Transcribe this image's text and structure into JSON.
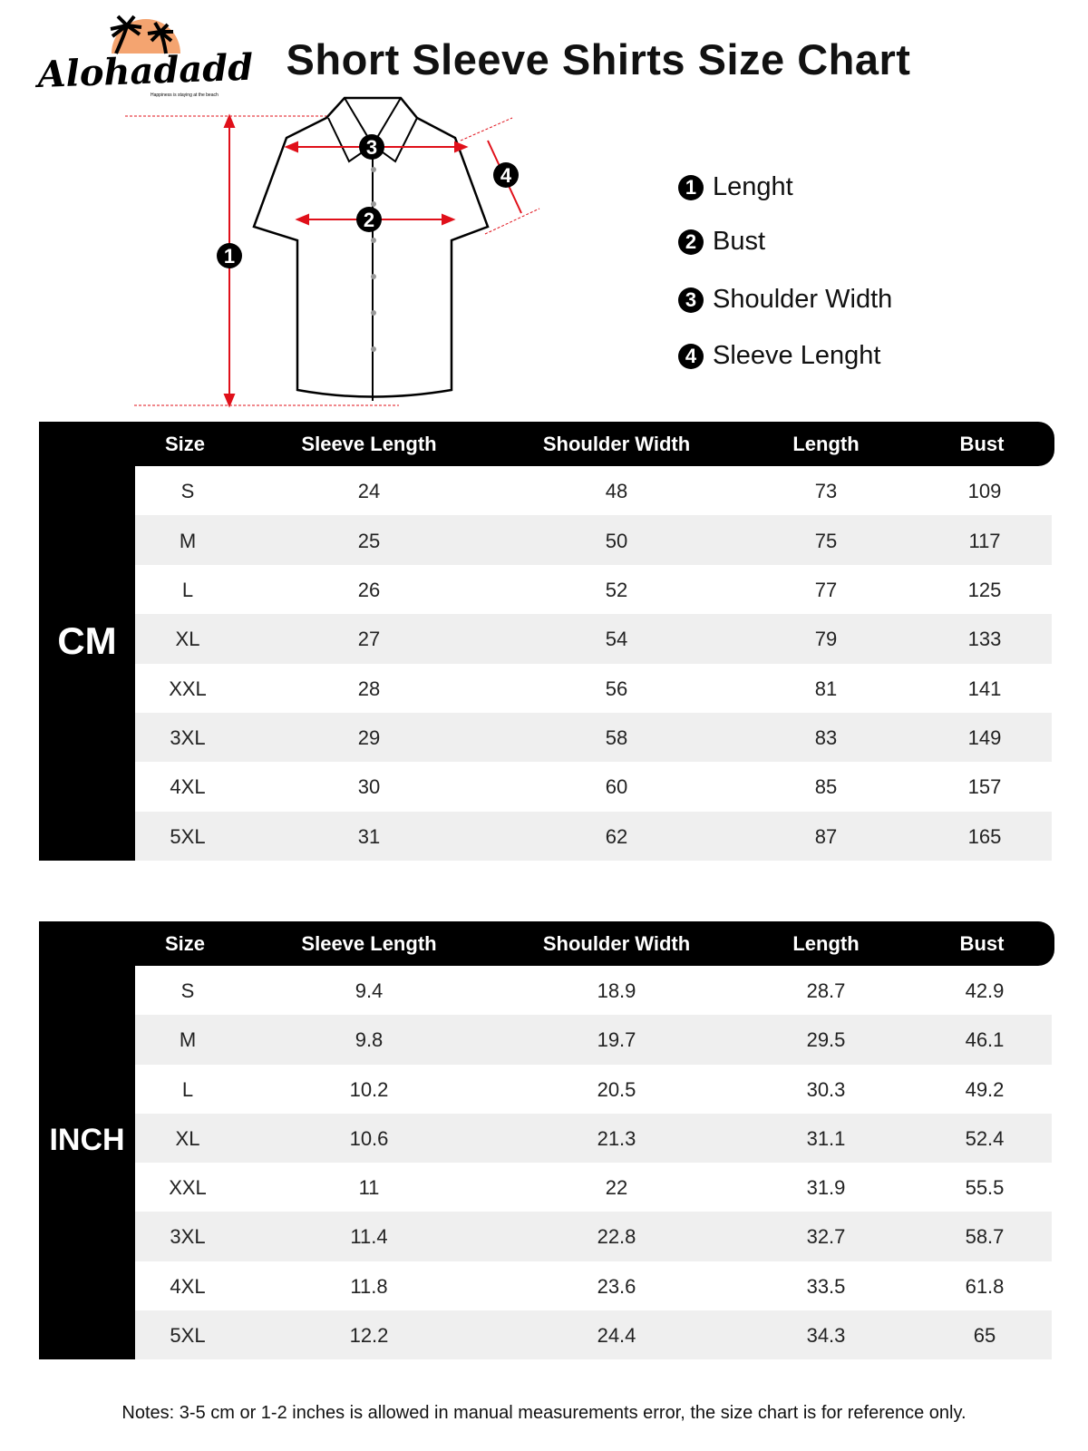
{
  "brand": {
    "name": "Alohadaddy",
    "tagline": "Happiness is staying at the beach",
    "accent": "#f4a470"
  },
  "title": "Short Sleeve Shirts Size Chart",
  "diagram": {
    "markers": [
      "1",
      "2",
      "3",
      "4"
    ],
    "line_color": "#e0101a"
  },
  "legend": [
    {
      "num": "1",
      "label": "Lenght"
    },
    {
      "num": "2",
      "label": "Bust"
    },
    {
      "num": "3",
      "label": "Shoulder Width"
    },
    {
      "num": "4",
      "label": "Sleeve Lenght"
    }
  ],
  "columns": [
    "Size",
    "Sleeve Length",
    "Shoulder Width",
    "Length",
    "Bust"
  ],
  "tables": [
    {
      "unit": "CM",
      "rows": [
        [
          "S",
          "24",
          "48",
          "73",
          "109"
        ],
        [
          "M",
          "25",
          "50",
          "75",
          "117"
        ],
        [
          "L",
          "26",
          "52",
          "77",
          "125"
        ],
        [
          "XL",
          "27",
          "54",
          "79",
          "133"
        ],
        [
          "XXL",
          "28",
          "56",
          "81",
          "141"
        ],
        [
          "3XL",
          "29",
          "58",
          "83",
          "149"
        ],
        [
          "4XL",
          "30",
          "60",
          "85",
          "157"
        ],
        [
          "5XL",
          "31",
          "62",
          "87",
          "165"
        ]
      ]
    },
    {
      "unit": "INCH",
      "rows": [
        [
          "S",
          "9.4",
          "18.9",
          "28.7",
          "42.9"
        ],
        [
          "M",
          "9.8",
          "19.7",
          "29.5",
          "46.1"
        ],
        [
          "L",
          "10.2",
          "20.5",
          "30.3",
          "49.2"
        ],
        [
          "XL",
          "10.6",
          "21.3",
          "31.1",
          "52.4"
        ],
        [
          "XXL",
          "11",
          "22",
          "31.9",
          "55.5"
        ],
        [
          "3XL",
          "11.4",
          "22.8",
          "32.7",
          "58.7"
        ],
        [
          "4XL",
          "11.8",
          "23.6",
          "33.5",
          "61.8"
        ],
        [
          "5XL",
          "12.2",
          "24.4",
          "34.3",
          "65"
        ]
      ]
    }
  ],
  "notes": "Notes: 3-5 cm or 1-2 inches is allowed in manual measurements error, the size chart is for reference only."
}
